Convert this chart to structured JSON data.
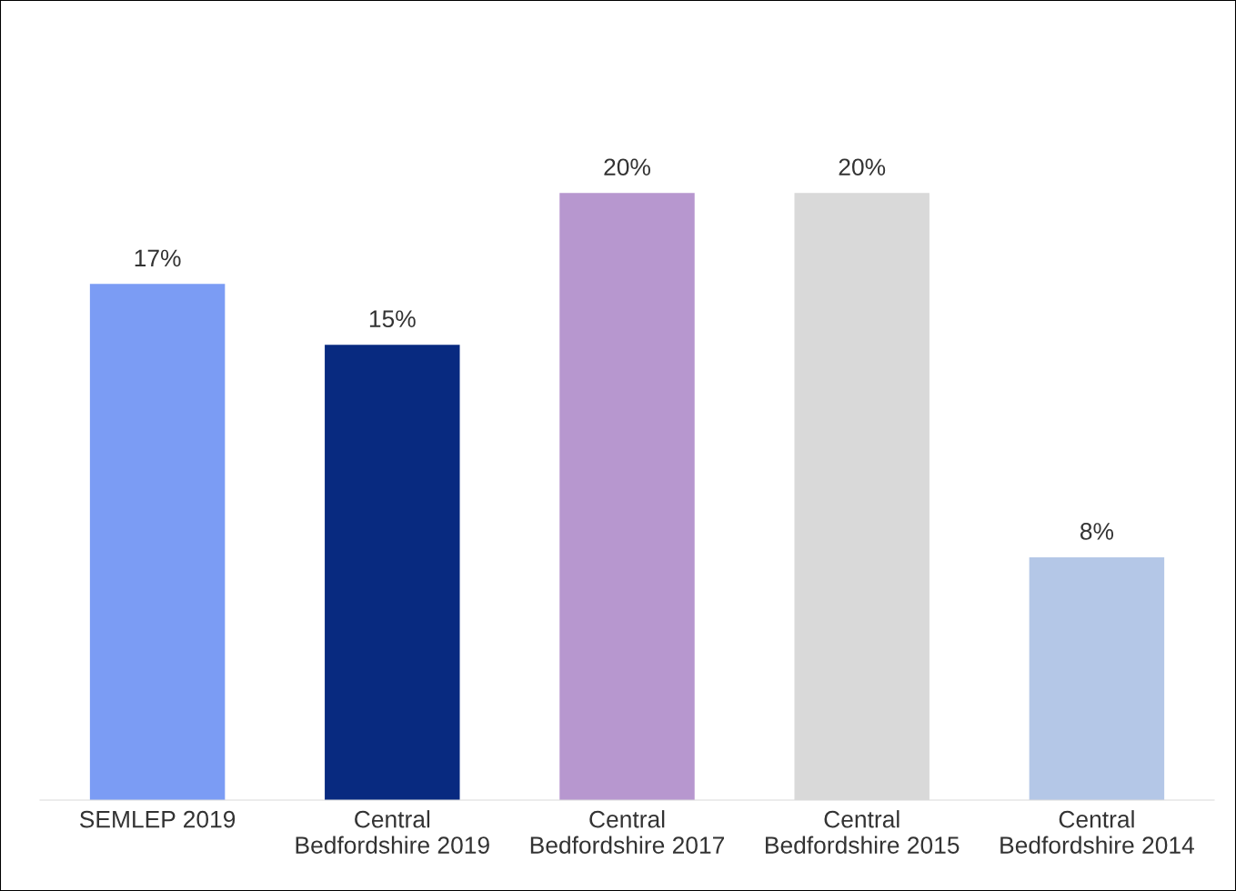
{
  "chart_data": {
    "type": "bar",
    "categories": [
      "SEMLEP 2019",
      "Central\nBedfordshire 2019",
      "Central\nBedfordshire 2017",
      "Central\nBedfordshire 2015",
      "Central\nBedfordshire 2014"
    ],
    "values": [
      17,
      15,
      20,
      20,
      8
    ],
    "value_labels": [
      "17%",
      "15%",
      "20%",
      "20%",
      "8%"
    ],
    "colors": [
      "#7b9cf4",
      "#082a80",
      "#b797cf",
      "#d9d9d9",
      "#b4c7e7"
    ],
    "grid": false,
    "legend": false
  }
}
